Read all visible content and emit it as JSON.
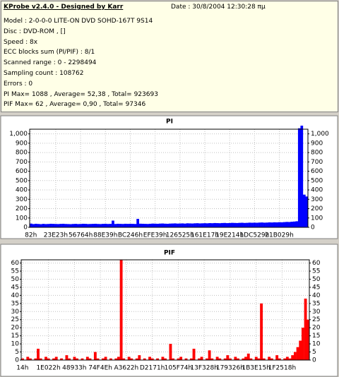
{
  "header": {
    "title": "KProbe v2.4.0 - Designed by Karr",
    "date": "Date : 30/8/2004 12:30:28 πμ",
    "lines": [
      "Model : 2-0-0-0 LITE-ON DVD SOHD-167T    9S14",
      "Disc : DVD-ROM ,  []",
      "Speed : 8x",
      "ECC blocks sum (PI/PIF) : 8/1",
      "Scanned range : 0 - 2298494",
      "Sampling count : 108762",
      "Errors : 0",
      "PI Max= 1088 , Average= 52,38 , Total= 923693",
      "PIF Max= 62 , Average= 0,90 , Total= 97346"
    ]
  },
  "chart_data": [
    {
      "type": "bar",
      "title": "PI",
      "color": "#0000ff",
      "grid": true,
      "ylim": [
        0,
        1050
      ],
      "yticks": [
        0,
        100,
        200,
        300,
        400,
        500,
        600,
        700,
        800,
        900,
        {
          "value": 1000,
          "label": "1,000"
        }
      ],
      "categories": [
        "82h",
        null,
        null,
        null,
        null,
        null,
        null,
        null,
        null,
        null,
        "23E23h",
        null,
        null,
        null,
        null,
        null,
        null,
        null,
        null,
        null,
        "56764h",
        null,
        null,
        null,
        null,
        null,
        null,
        null,
        null,
        null,
        "88E39h",
        null,
        null,
        null,
        null,
        null,
        null,
        null,
        null,
        null,
        "BC246h",
        null,
        null,
        null,
        null,
        null,
        null,
        null,
        null,
        null,
        "EFE39h",
        null,
        null,
        null,
        null,
        null,
        null,
        null,
        null,
        null,
        "126525h",
        null,
        null,
        null,
        null,
        null,
        null,
        null,
        null,
        null,
        "161E17h",
        null,
        null,
        null,
        null,
        null,
        null,
        null,
        null,
        null,
        "19E214h",
        null,
        null,
        null,
        null,
        null,
        null,
        null,
        null,
        null,
        "1DC529h",
        null,
        null,
        null,
        null,
        null,
        null,
        null,
        null,
        null,
        "21B029h",
        null,
        null,
        null,
        null,
        null,
        null,
        null,
        null,
        null,
        null,
        null
      ],
      "values": [
        40,
        35,
        38,
        36,
        34,
        37,
        35,
        36,
        38,
        37,
        36,
        35,
        37,
        38,
        36,
        35,
        34,
        36,
        37,
        35,
        36,
        38,
        37,
        35,
        36,
        37,
        38,
        36,
        35,
        37,
        38,
        36,
        37,
        72,
        36,
        38,
        37,
        36,
        38,
        37,
        38,
        37,
        36,
        90,
        39,
        38,
        37,
        36,
        38,
        40,
        39,
        38,
        40,
        41,
        39,
        38,
        40,
        41,
        42,
        40,
        41,
        42,
        40,
        43,
        42,
        41,
        43,
        44,
        42,
        43,
        44,
        43,
        45,
        44,
        46,
        45,
        44,
        46,
        47,
        45,
        46,
        48,
        47,
        46,
        48,
        49,
        47,
        48,
        50,
        49,
        50,
        49,
        51,
        52,
        50,
        51,
        53,
        52,
        54,
        53,
        55,
        54,
        56,
        58,
        57,
        60,
        62,
        65,
        1060,
        1088,
        350,
        330
      ]
    },
    {
      "type": "bar",
      "title": "PIF",
      "color": "#ff0000",
      "grid": true,
      "ylim": [
        0,
        62
      ],
      "yticks": [
        0,
        5,
        10,
        15,
        20,
        25,
        30,
        35,
        40,
        45,
        50,
        55,
        60
      ],
      "categories": [
        "14h",
        null,
        null,
        null,
        null,
        null,
        null,
        null,
        null,
        null,
        "1E022h",
        null,
        null,
        null,
        null,
        null,
        null,
        null,
        null,
        null,
        "48933h",
        null,
        null,
        null,
        null,
        null,
        null,
        null,
        null,
        null,
        "74F4Eh",
        null,
        null,
        null,
        null,
        null,
        null,
        null,
        null,
        null,
        "A3622h",
        null,
        null,
        null,
        null,
        null,
        null,
        null,
        null,
        null,
        "D2171h",
        null,
        null,
        null,
        null,
        null,
        null,
        null,
        null,
        null,
        "105F74h",
        null,
        null,
        null,
        null,
        null,
        null,
        null,
        null,
        null,
        "13F328h",
        null,
        null,
        null,
        null,
        null,
        null,
        null,
        null,
        null,
        "179326h",
        null,
        null,
        null,
        null,
        null,
        null,
        null,
        null,
        null,
        "1B3E15h",
        null,
        null,
        null,
        null,
        null,
        null,
        null,
        null,
        null,
        "1F2518h",
        null,
        null,
        null,
        null,
        null,
        null,
        null,
        null,
        null,
        null
      ],
      "values": [
        1,
        0,
        2,
        1,
        0,
        1,
        7,
        1,
        0,
        2,
        1,
        0,
        1,
        2,
        0,
        1,
        0,
        3,
        1,
        0,
        2,
        1,
        0,
        1,
        0,
        2,
        1,
        0,
        5,
        1,
        0,
        1,
        2,
        0,
        1,
        0,
        1,
        2,
        62,
        1,
        0,
        2,
        1,
        0,
        1,
        3,
        0,
        1,
        0,
        2,
        1,
        0,
        1,
        0,
        2,
        1,
        0,
        10,
        1,
        0,
        1,
        2,
        0,
        1,
        0,
        1,
        7,
        0,
        1,
        2,
        0,
        1,
        6,
        1,
        0,
        2,
        1,
        0,
        1,
        3,
        1,
        0,
        2,
        1,
        0,
        1,
        2,
        4,
        1,
        0,
        2,
        1,
        35,
        1,
        0,
        2,
        1,
        0,
        3,
        1,
        0,
        1,
        2,
        1,
        3,
        5,
        8,
        12,
        20,
        38,
        25
      ]
    }
  ]
}
